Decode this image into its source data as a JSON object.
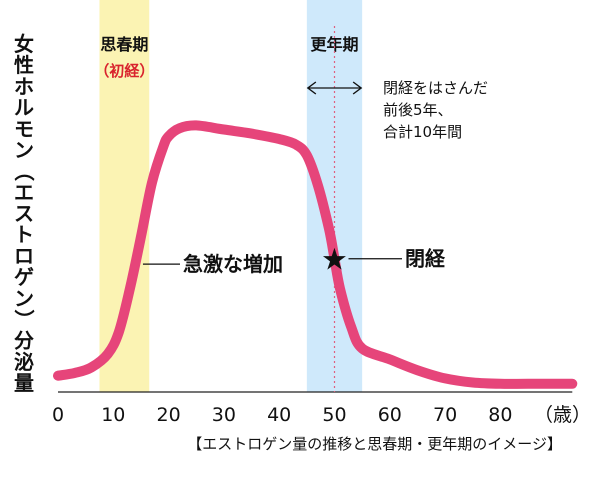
{
  "chart_data": {
    "type": "line",
    "ylabel": "女性ホルモン（エストロゲン）分泌量",
    "xlabel": "",
    "x_unit": "（歳）",
    "x_ticks": [
      0,
      10,
      20,
      30,
      40,
      50,
      60,
      70,
      80
    ],
    "xlim": [
      0,
      93
    ],
    "ylim": [
      0,
      100
    ],
    "grid": false,
    "series": [
      {
        "color": "#e6457a",
        "x": [
          0,
          3,
          6,
          9,
          11,
          13,
          15,
          17,
          19,
          20,
          22,
          25,
          30,
          35,
          40,
          43,
          45,
          47,
          49,
          50,
          51,
          53,
          55,
          60,
          65,
          70,
          75,
          80,
          85,
          93
        ],
        "y": [
          6,
          7,
          9,
          14,
          22,
          38,
          57,
          77,
          90,
          94,
          97,
          98,
          96.5,
          95,
          93,
          91,
          87,
          76,
          60,
          49,
          38,
          24,
          16,
          12,
          8,
          5,
          3.5,
          3,
          3,
          3
        ]
      }
    ],
    "bands": [
      {
        "title": "思春期",
        "subtitle": "（初経）",
        "x_start": 7.5,
        "x_end": 16.5,
        "color": "#fbf3b3"
      },
      {
        "title": "更年期",
        "subtitle": "",
        "x_start": 45,
        "x_end": 55,
        "color": "#cfe9fb"
      }
    ],
    "marker": {
      "x": 50,
      "y": 49,
      "symbol": "★",
      "label": "閉経"
    },
    "annotations": [
      {
        "text": "急激な増加",
        "x": 15,
        "y": 47
      }
    ],
    "span_note": {
      "x_start": 45,
      "x_end": 55,
      "lines": [
        "閉経をはさんだ",
        "前後5年、",
        "合計10年間"
      ]
    },
    "caption": "【エストロゲン量の推移と思春期・更年期のイメージ】"
  }
}
